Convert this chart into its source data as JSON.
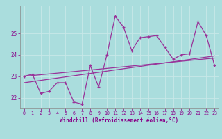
{
  "x": [
    0,
    1,
    2,
    3,
    4,
    5,
    6,
    7,
    8,
    9,
    10,
    11,
    12,
    13,
    14,
    15,
    16,
    17,
    18,
    19,
    20,
    21,
    22,
    23
  ],
  "y_main": [
    23.0,
    23.1,
    22.2,
    22.3,
    22.7,
    22.7,
    21.8,
    21.7,
    23.5,
    22.5,
    24.0,
    25.8,
    25.3,
    24.2,
    24.8,
    24.85,
    24.9,
    24.35,
    23.8,
    24.0,
    24.05,
    25.55,
    24.9,
    23.5
  ],
  "trend1_x": [
    0,
    23
  ],
  "trend1_y": [
    23.0,
    23.85
  ],
  "trend2_x": [
    0,
    23
  ],
  "trend2_y": [
    22.7,
    23.95
  ],
  "bg_color": "#aadddd",
  "line_color": "#993399",
  "grid_color": "#bbdddd",
  "text_color": "#880088",
  "xlabel": "Windchill (Refroidissement éolien,°C)",
  "ylim": [
    21.5,
    26.3
  ],
  "xlim": [
    -0.5,
    23.5
  ],
  "yticks": [
    22,
    23,
    24,
    25
  ],
  "ytick_labels": [
    "22",
    "23",
    "24",
    "25"
  ],
  "xticks": [
    0,
    1,
    2,
    3,
    4,
    5,
    6,
    7,
    8,
    9,
    10,
    11,
    12,
    13,
    14,
    15,
    16,
    17,
    18,
    19,
    20,
    21,
    22,
    23
  ]
}
